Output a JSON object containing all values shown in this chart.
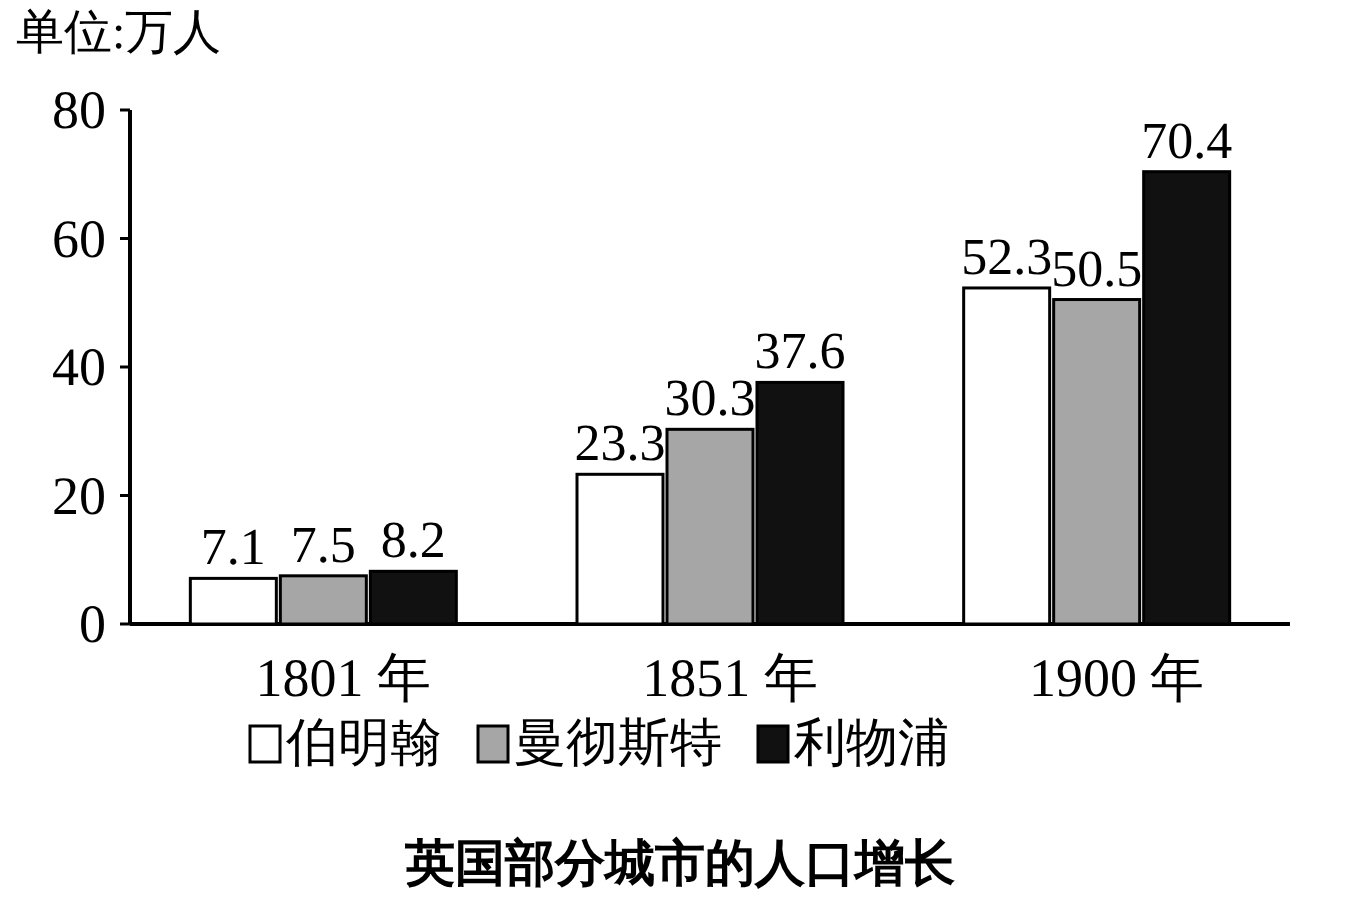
{
  "chart_data": {
    "type": "bar",
    "title": "英国部分城市的人口增长",
    "ylabel": "单位:万人",
    "categories": [
      "1801 年",
      "1851 年",
      "1900 年"
    ],
    "series": [
      {
        "name": "伯明翰",
        "color": "#ffffff",
        "values": [
          7.1,
          23.3,
          52.3
        ]
      },
      {
        "name": "曼彻斯特",
        "color": "#a6a6a6",
        "values": [
          7.5,
          30.3,
          50.5
        ]
      },
      {
        "name": "利物浦",
        "color": "#111111",
        "values": [
          8.2,
          37.6,
          70.4
        ]
      }
    ],
    "ylim": [
      0,
      80
    ],
    "yticks": [
      0,
      20,
      40,
      60,
      80
    ],
    "data_labels": true,
    "legend": "bottom",
    "grid": false
  }
}
